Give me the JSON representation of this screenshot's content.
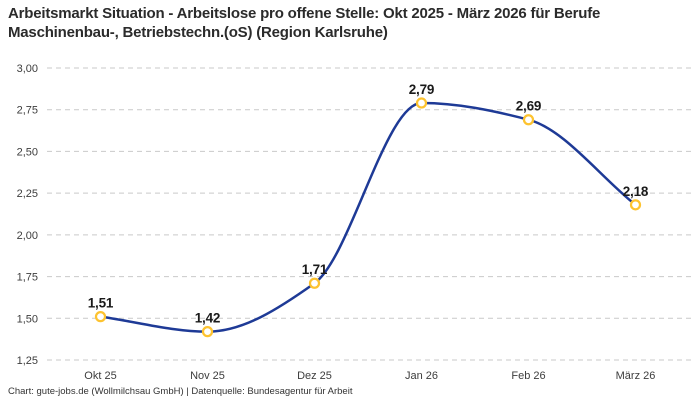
{
  "header": {
    "title": "Arbeitsmarkt Situation - Arbeitslose pro offene Stelle: Okt 2025 - März 2026 für Berufe Maschinenbau-, Betriebstechn.(oS) (Region Karlsruhe)"
  },
  "footer": {
    "credit": "Chart: gute-jobs.de (Wollmilchsau GmbH) | Datenquelle: Bundesagentur für Arbeit"
  },
  "chart_data": {
    "type": "line",
    "title": "Arbeitsmarkt Situation - Arbeitslose pro offene Stelle: Okt 2025 - März 2026 für Berufe Maschinenbau-, Betriebstechn.(oS) (Region Karlsruhe)",
    "categories": [
      "Okt 25",
      "Nov 25",
      "Dez 25",
      "Jan 26",
      "Feb 26",
      "März 26"
    ],
    "values": [
      1.51,
      1.42,
      1.71,
      2.79,
      2.69,
      2.18
    ],
    "value_labels": [
      "1,51",
      "1,42",
      "1,71",
      "2,79",
      "2,69",
      "2,18"
    ],
    "xlabel": "",
    "ylabel": "",
    "ylim": [
      1.25,
      3.0
    ],
    "ytick_step": 0.25,
    "ytick_labels": [
      "1,25",
      "1,50",
      "1,75",
      "2,00",
      "2,25",
      "2,50",
      "2,75",
      "3,00"
    ],
    "grid": "horizontal-dashed",
    "legend": "none",
    "line_color": "#1e3a96",
    "marker_color": "#fdc330",
    "marker_fill": "#ffffff",
    "gridline_color": "#c9c9c9",
    "curve": "monotone"
  }
}
